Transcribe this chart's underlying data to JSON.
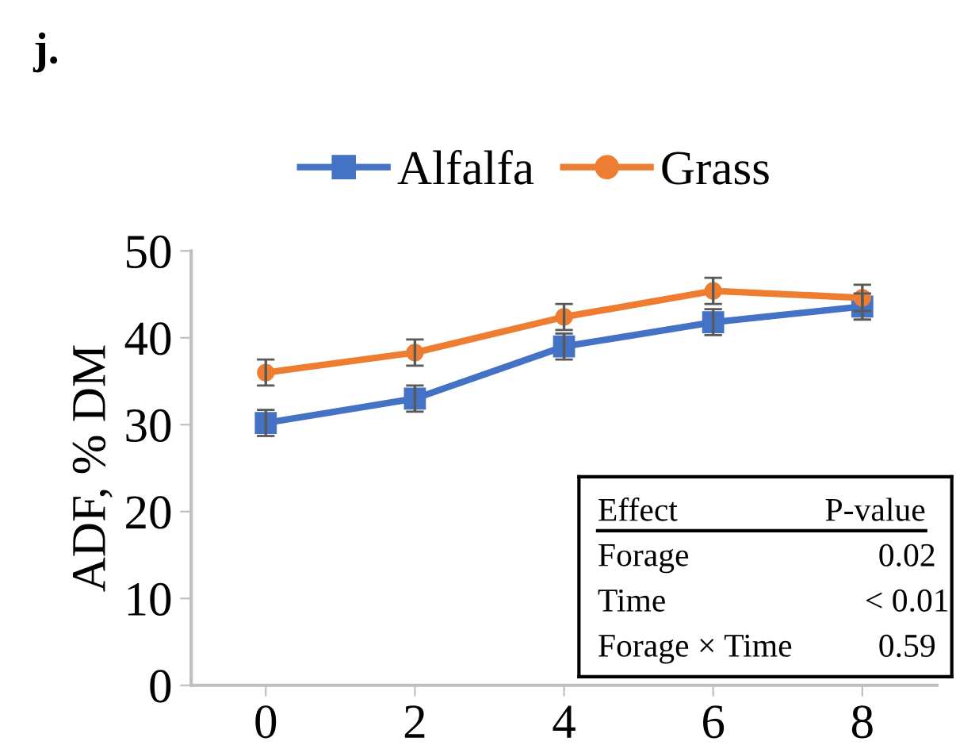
{
  "chart_data": {
    "type": "line",
    "title": "j.",
    "ylabel": "ADF, % DM",
    "x": [
      0,
      2,
      4,
      6,
      8
    ],
    "xlim": [
      -1,
      9
    ],
    "xticks": [
      0,
      2,
      4,
      6,
      8
    ],
    "ylim": [
      0,
      50
    ],
    "yticks": [
      0,
      10,
      20,
      30,
      40,
      50
    ],
    "series": [
      {
        "name": "Alfalfa",
        "color": "#4472c4",
        "marker": "square",
        "values": [
          30.2,
          33.0,
          39.0,
          41.8,
          43.6
        ],
        "errors": [
          1.5,
          1.5,
          1.5,
          1.5,
          1.5
        ]
      },
      {
        "name": "Grass",
        "color": "#ed7d31",
        "marker": "circle",
        "values": [
          36.0,
          38.3,
          42.4,
          45.4,
          44.6
        ],
        "errors": [
          1.5,
          1.5,
          1.5,
          1.5,
          1.5
        ]
      }
    ],
    "annotations": [
      "Effect",
      "P-value",
      "Forage",
      "0.02",
      "Time",
      "< 0.01",
      "Forage × Time",
      "0.59"
    ],
    "legend": "top",
    "grid": false
  }
}
